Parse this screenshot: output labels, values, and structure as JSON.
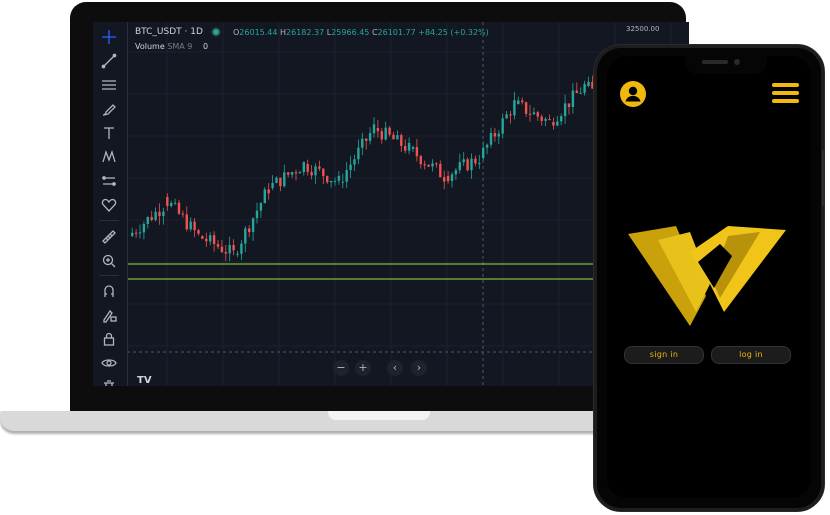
{
  "chart": {
    "symbol": "BTC_USDT · 1D",
    "ohlc": {
      "o_key": "O",
      "o": "26015.44",
      "h_key": "H",
      "h": "26182.37",
      "l_key": "L",
      "l": "25966.45",
      "c_key": "C",
      "c": "26101.77",
      "change": "+84.25 (+0.32%)"
    },
    "volume_label": "Volume",
    "volume_indicator": "SMA 9",
    "volume_value": "0",
    "price_axis_label": "32500.00",
    "tv_logo": "TV",
    "zoom_out": "−",
    "zoom_in": "+",
    "scroll_left": "‹",
    "scroll_right": "›"
  },
  "toolbar_icons": [
    "crosshair-icon",
    "trend-line-icon",
    "fib-icon",
    "brush-icon",
    "text-icon",
    "pattern-icon",
    "measure-icon",
    "heart-icon",
    "ruler-icon",
    "zoom-icon",
    "magnet-icon",
    "lock-draw-icon",
    "lock-icon",
    "eye-icon",
    "trash-icon"
  ],
  "colors": {
    "up": "#26a69a",
    "down": "#ef5350",
    "accent": "#f0b90b",
    "background": "#131722",
    "hline": "#9be13a"
  },
  "chart_data": {
    "type": "candlestick",
    "series": [
      {
        "values": [
          [
            0.42,
            0.52
          ],
          [
            0.55,
            0.42
          ],
          [
            0.42,
            0.36
          ],
          [
            0.36,
            0.58
          ],
          [
            0.58,
            0.66
          ],
          [
            0.66,
            0.6
          ],
          [
            0.6,
            0.78
          ],
          [
            0.78,
            0.71
          ],
          [
            0.71,
            0.62
          ],
          [
            0.62,
            0.68
          ],
          [
            0.68,
            0.86
          ],
          [
            0.86,
            0.8
          ],
          [
            0.8,
            0.92
          ],
          [
            0.92,
            0.84
          ],
          [
            0.84,
            0.6
          ],
          [
            0.6,
            0.51
          ],
          [
            0.51,
            0.55
          ],
          [
            0.55,
            0.5
          ],
          [
            0.5,
            0.56
          ],
          [
            0.56,
            0.51
          ],
          [
            0.51,
            0.53
          ],
          [
            0.53,
            0.49
          ],
          [
            0.49,
            0.57
          ],
          [
            0.57,
            0.49
          ],
          [
            0.49,
            0.44
          ]
        ]
      }
    ]
  },
  "phone": {
    "sign_in": "sign in",
    "log_in": "log in"
  }
}
